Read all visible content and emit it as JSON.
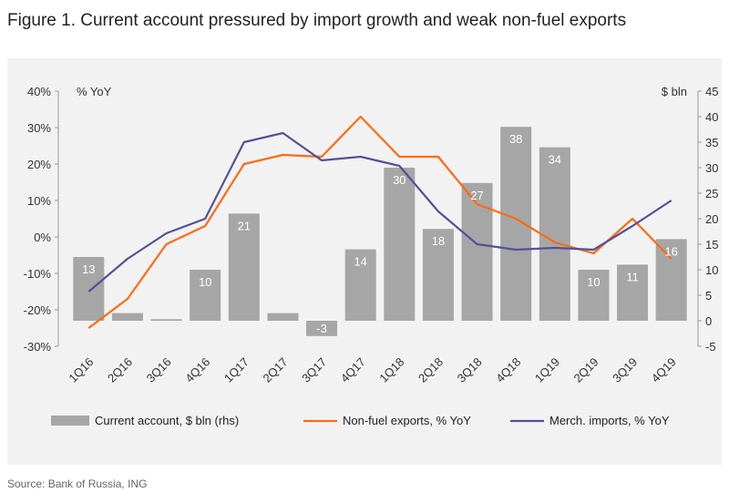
{
  "title": "Figure 1. Current account pressured by import growth and weak non-fuel exports",
  "source": "Source: Bank of Russia, ING",
  "colors": {
    "bar": "#a6a6a6",
    "nonfuel": "#ff6a13",
    "imports": "#525199",
    "panel": "#f2f2f2"
  },
  "chart_data": {
    "type": "bar+line",
    "categories": [
      "1Q16",
      "2Q16",
      "3Q16",
      "4Q16",
      "1Q17",
      "2Q17",
      "3Q17",
      "4Q17",
      "1Q18",
      "2Q18",
      "3Q18",
      "4Q18",
      "1Q19",
      "2Q19",
      "3Q19",
      "4Q19"
    ],
    "left_axis": {
      "label": "% YoY",
      "ticks": [
        "40%",
        "30%",
        "20%",
        "10%",
        "0%",
        "-10%",
        "-20%",
        "-30%"
      ],
      "range": [
        -30,
        40
      ]
    },
    "right_axis": {
      "label": "$ bln",
      "ticks": [
        "45",
        "40",
        "35",
        "30",
        "25",
        "20",
        "15",
        "10",
        "5",
        "0",
        "-5"
      ],
      "range": [
        -5,
        45
      ]
    },
    "bars": {
      "name": "Current account, $ bln (rhs)",
      "values": [
        12.5,
        1.5,
        0.3,
        10,
        21,
        1.5,
        -3,
        14,
        30,
        18,
        27,
        38,
        34,
        10,
        11,
        16
      ],
      "labels": [
        "13",
        "",
        "",
        "10",
        "21",
        "",
        "-3",
        "14",
        "30",
        "18",
        "27",
        "38",
        "34",
        "10",
        "11",
        "16"
      ]
    },
    "series": [
      {
        "name": "Non-fuel exports, % YoY",
        "color": "#ff6a13",
        "values": [
          -25,
          -17,
          -2,
          3,
          20,
          22.5,
          22,
          33,
          22,
          22,
          9,
          5,
          -1.5,
          -4.5,
          5,
          -6
        ]
      },
      {
        "name": "Merch. imports, % YoY",
        "color": "#525199",
        "values": [
          -15,
          -6,
          1,
          5,
          26,
          28.5,
          21,
          22,
          19.5,
          7,
          -2,
          -3.5,
          -3,
          -3.5,
          3,
          10
        ]
      }
    ],
    "legend_position": "bottom"
  }
}
